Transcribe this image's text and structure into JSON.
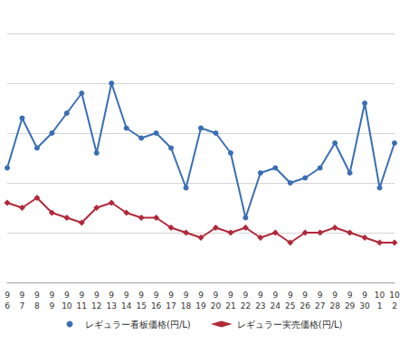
{
  "chart_data": {
    "type": "line",
    "categories": [
      "9\n6",
      "9\n7",
      "9\n8",
      "9\n9",
      "9\n10",
      "9\n11",
      "9\n12",
      "9\n13",
      "9\n14",
      "9\n15",
      "9\n16",
      "9\n17",
      "9\n18",
      "9\n19",
      "9\n20",
      "9\n21",
      "9\n22",
      "9\n23",
      "9\n24",
      "9\n25",
      "9\n26",
      "9\n27",
      "9\n28",
      "9\n29",
      "9\n30",
      "10\n1",
      "10\n2"
    ],
    "series": [
      {
        "name": "レギュラー看板価格(円/L)",
        "color": "#3a6fb5",
        "marker": "circle",
        "values": [
          162.3,
          163.3,
          162.7,
          163.0,
          163.4,
          163.8,
          162.6,
          164.0,
          163.1,
          162.9,
          163.0,
          162.7,
          161.9,
          163.1,
          163.0,
          162.6,
          161.3,
          162.2,
          162.3,
          162.0,
          162.1,
          162.3,
          162.8,
          162.2,
          163.6,
          161.9,
          162.8
        ]
      },
      {
        "name": "レギュラー実売価格(円/L)",
        "color": "#b02a3a",
        "marker": "diamond",
        "values": [
          161.6,
          161.5,
          161.7,
          161.4,
          161.3,
          161.2,
          161.5,
          161.6,
          161.4,
          161.3,
          161.3,
          161.1,
          161.0,
          160.9,
          161.1,
          161.0,
          161.1,
          160.9,
          161.0,
          160.8,
          161.0,
          161.0,
          161.1,
          161.0,
          160.9,
          160.8,
          160.8
        ]
      }
    ],
    "ylim": [
      160,
      165
    ],
    "yticks": [
      160,
      161,
      162,
      163,
      164,
      165
    ],
    "grid": true,
    "legend": "bottom",
    "tick_labels": "x"
  }
}
